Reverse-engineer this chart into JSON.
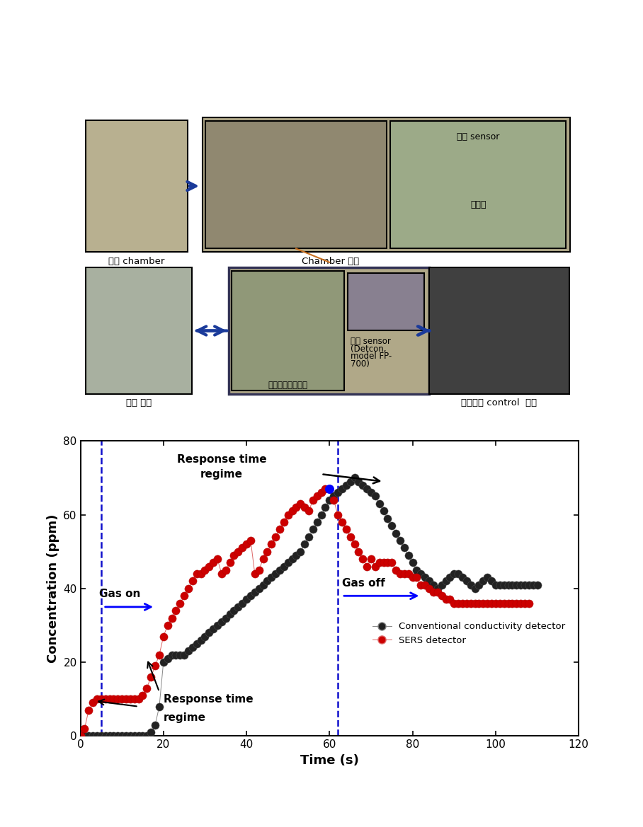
{
  "black_x": [
    0,
    1,
    2,
    3,
    4,
    5,
    6,
    7,
    8,
    9,
    10,
    11,
    12,
    13,
    14,
    15,
    16,
    17,
    18,
    19,
    20,
    21,
    22,
    23,
    24,
    25,
    26,
    27,
    28,
    29,
    30,
    31,
    32,
    33,
    34,
    35,
    36,
    37,
    38,
    39,
    40,
    41,
    42,
    43,
    44,
    45,
    46,
    47,
    48,
    49,
    50,
    51,
    52,
    53,
    54,
    55,
    56,
    57,
    58,
    59,
    60,
    61,
    62,
    63,
    64,
    65,
    66,
    67,
    68,
    69,
    70,
    71,
    72,
    73,
    74,
    75,
    76,
    77,
    78,
    79,
    80,
    81,
    82,
    83,
    84,
    85,
    86,
    87,
    88,
    89,
    90,
    91,
    92,
    93,
    94,
    95,
    96,
    97,
    98,
    99,
    100,
    101,
    102,
    103,
    104,
    105,
    106,
    107,
    108,
    109,
    110
  ],
  "black_y": [
    0,
    0,
    0,
    0,
    0,
    0,
    0,
    0,
    0,
    0,
    0,
    0,
    0,
    0,
    0,
    0,
    0,
    1,
    3,
    8,
    20,
    21,
    22,
    22,
    22,
    22,
    23,
    24,
    25,
    26,
    27,
    28,
    29,
    30,
    31,
    32,
    33,
    34,
    35,
    36,
    37,
    38,
    39,
    40,
    41,
    42,
    43,
    44,
    45,
    46,
    47,
    48,
    49,
    50,
    52,
    54,
    56,
    58,
    60,
    62,
    64,
    65,
    66,
    67,
    68,
    69,
    70,
    69,
    68,
    67,
    66,
    65,
    63,
    61,
    59,
    57,
    55,
    53,
    51,
    49,
    47,
    45,
    44,
    43,
    42,
    41,
    40,
    41,
    42,
    43,
    44,
    44,
    43,
    42,
    41,
    40,
    41,
    42,
    43,
    42,
    41,
    41,
    41,
    41,
    41,
    41,
    41,
    41,
    41,
    41,
    41
  ],
  "red_x": [
    0,
    1,
    2,
    3,
    4,
    5,
    6,
    7,
    8,
    9,
    10,
    11,
    12,
    13,
    14,
    15,
    16,
    17,
    18,
    19,
    20,
    21,
    22,
    23,
    24,
    25,
    26,
    27,
    28,
    29,
    30,
    31,
    32,
    33,
    34,
    35,
    36,
    37,
    38,
    39,
    40,
    41,
    42,
    43,
    44,
    45,
    46,
    47,
    48,
    49,
    50,
    51,
    52,
    53,
    54,
    55,
    56,
    57,
    58,
    59,
    60,
    61,
    62,
    63,
    64,
    65,
    66,
    67,
    68,
    69,
    70,
    71,
    72,
    73,
    74,
    75,
    76,
    77,
    78,
    79,
    80,
    81,
    82,
    83,
    84,
    85,
    86,
    87,
    88,
    89,
    90,
    91,
    92,
    93,
    94,
    95,
    96,
    97,
    98,
    99,
    100,
    101,
    102,
    103,
    104,
    105,
    106,
    107,
    108
  ],
  "red_y": [
    0,
    2,
    7,
    9,
    10,
    10,
    10,
    10,
    10,
    10,
    10,
    10,
    10,
    10,
    10,
    11,
    13,
    16,
    19,
    22,
    27,
    30,
    32,
    34,
    36,
    38,
    40,
    42,
    44,
    44,
    45,
    46,
    47,
    48,
    44,
    45,
    47,
    49,
    50,
    51,
    52,
    53,
    44,
    45,
    48,
    50,
    52,
    54,
    56,
    58,
    60,
    61,
    62,
    63,
    62,
    61,
    64,
    65,
    66,
    67,
    67,
    64,
    60,
    58,
    56,
    54,
    52,
    50,
    48,
    46,
    48,
    46,
    47,
    47,
    47,
    47,
    45,
    44,
    44,
    44,
    43,
    43,
    41,
    41,
    40,
    39,
    39,
    38,
    37,
    37,
    36,
    36,
    36,
    36,
    36,
    36,
    36,
    36,
    36,
    36,
    36,
    36,
    36,
    36,
    36,
    36,
    36,
    36,
    36
  ],
  "gas_on_x": 5,
  "gas_off_x": 62,
  "xlim": [
    0,
    120
  ],
  "ylim": [
    0,
    80
  ],
  "xticks": [
    0,
    20,
    40,
    60,
    80,
    100,
    120
  ],
  "yticks": [
    0,
    20,
    40,
    60,
    80
  ],
  "xlabel": "Time (s)",
  "ylabel": "Concentration (ppm)",
  "legend1": "Conventional conductivity detector",
  "legend2": "SERS detector",
  "black_color": "#222222",
  "red_color": "#cc0000",
  "blue_color": "#1010cc",
  "top_border_color": "#000000",
  "top_labels": [
    "실험 chamber",
    "Chamber 내부",
    "주요 설비",
    "도장부스 control  패널"
  ],
  "center_label_lines": [
    "상용 sensor",
    "(Detcon,",
    "model FP-",
    "700)"
  ],
  "surface_label": "표면증강라만센서",
  "top_right_labels": [
    "상용 sensor",
    "환기구"
  ],
  "row1_caption": "Chamber 내부",
  "row2_center_caption": "표면증강라만센서"
}
